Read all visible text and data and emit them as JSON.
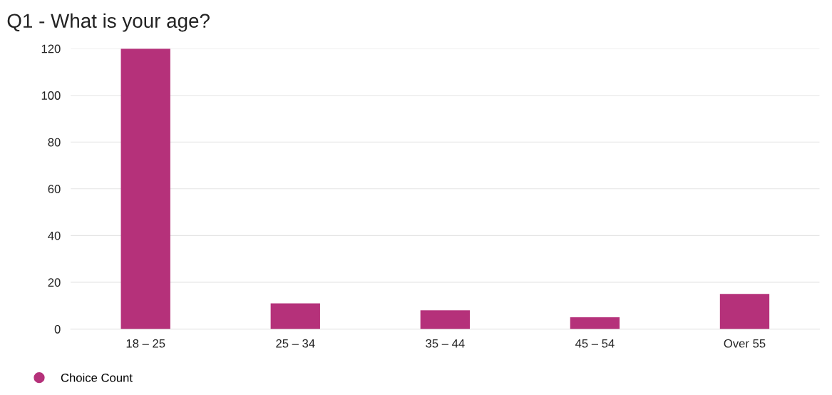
{
  "chart_data": {
    "type": "bar",
    "title": "Q1 - What is your age?",
    "categories": [
      "18 – 25",
      "25 – 34",
      "35 – 44",
      "45 – 54",
      "Over 55"
    ],
    "series": [
      {
        "name": "Choice Count",
        "color": "#b5317a",
        "values": [
          120,
          11,
          8,
          5,
          15
        ]
      }
    ],
    "ylim": [
      0,
      120
    ],
    "yticks": [
      0,
      20,
      40,
      60,
      80,
      100,
      120
    ],
    "grid": "y",
    "legend": "bottom left"
  }
}
